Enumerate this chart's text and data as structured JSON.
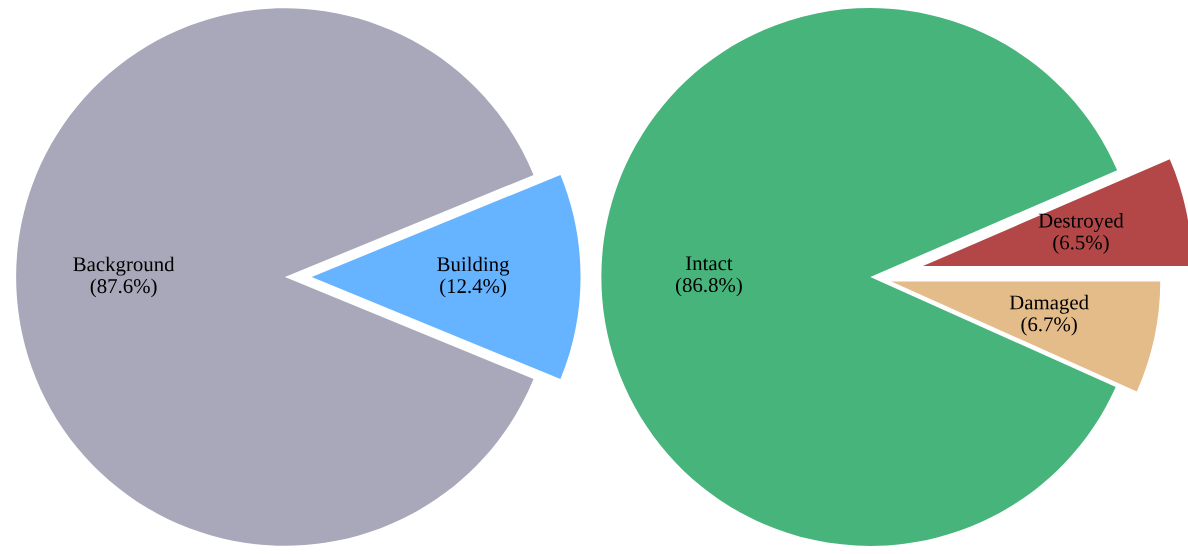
{
  "chart_data": [
    {
      "type": "pie",
      "categories": [
        "Building",
        "Background"
      ],
      "values": [
        12.4,
        87.6
      ],
      "colors": [
        "#66b3ff",
        "#a8a8ba"
      ],
      "value_labels": [
        "(12.4%)",
        "(87.6%)"
      ]
    },
    {
      "type": "pie",
      "categories": [
        "Damaged",
        "Destroyed",
        "Intact"
      ],
      "values": [
        6.7,
        6.5,
        86.8
      ],
      "colors": [
        "#e4bc8a",
        "#b34747",
        "#47b57b"
      ],
      "value_labels": [
        "(6.7%)",
        "(6.5%)",
        "(86.8%)"
      ]
    }
  ]
}
